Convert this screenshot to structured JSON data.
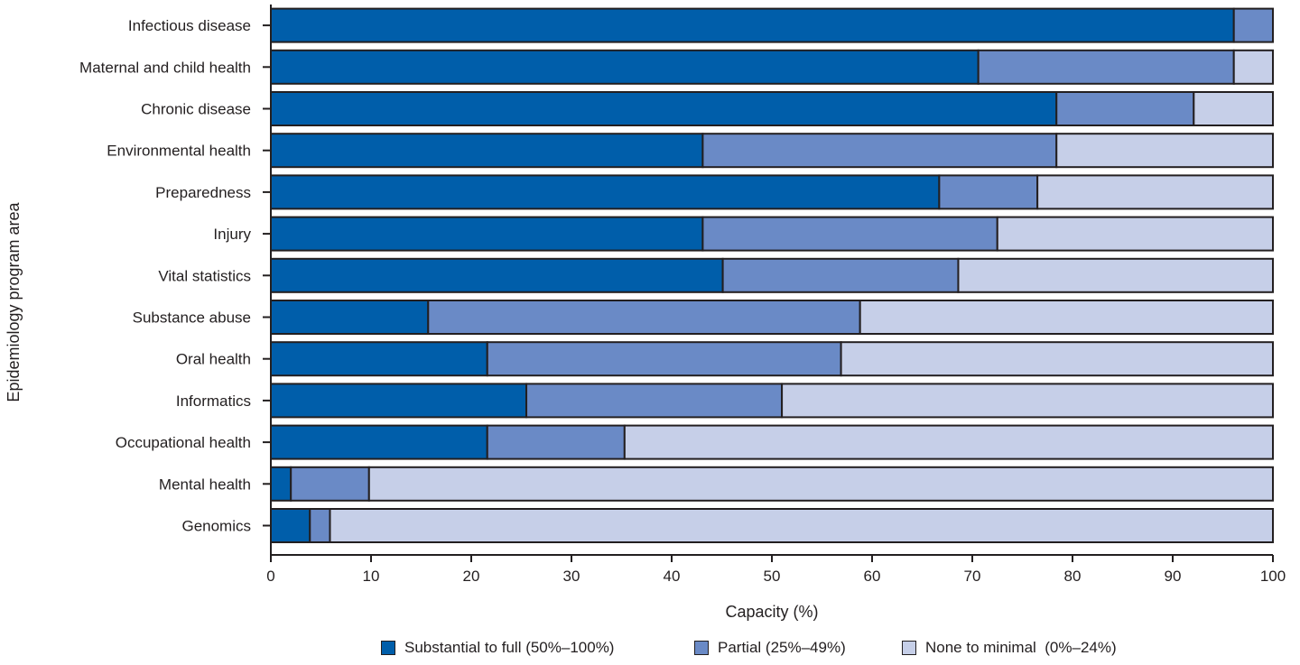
{
  "chart_data": {
    "type": "bar",
    "orientation": "horizontal",
    "stacked": true,
    "xlabel": "Capacity (%)",
    "ylabel": "Epidemiology program area",
    "xlim": [
      0,
      100
    ],
    "xticks": [
      0,
      10,
      20,
      30,
      40,
      50,
      60,
      70,
      80,
      90,
      100
    ],
    "grid": false,
    "legend_position": "bottom",
    "categories": [
      "Infectious disease",
      "Maternal and child health",
      "Chronic disease",
      "Environmental health",
      "Preparedness",
      "Injury",
      "Vital statistics",
      "Substance abuse",
      "Oral health",
      "Informatics",
      "Occupational health",
      "Mental health",
      "Genomics"
    ],
    "series": [
      {
        "name": "Substantial to full (50%–100%)",
        "color": "#005eaa",
        "values": [
          96.1,
          70.6,
          78.4,
          43.1,
          66.7,
          43.1,
          45.1,
          15.7,
          21.6,
          25.5,
          21.6,
          2.0,
          3.9
        ]
      },
      {
        "name": "Partial (25%–49%)",
        "color": "#6a8ac6",
        "values": [
          3.9,
          25.5,
          13.7,
          35.3,
          9.8,
          29.4,
          23.5,
          43.1,
          35.3,
          25.5,
          13.7,
          7.8,
          2.0
        ]
      },
      {
        "name": "None to minimal  (0%–24%)",
        "color": "#c6cfe8",
        "values": [
          0.0,
          3.9,
          7.9,
          21.6,
          23.5,
          27.5,
          31.4,
          41.2,
          43.1,
          49.0,
          64.7,
          90.2,
          94.1
        ]
      }
    ]
  }
}
